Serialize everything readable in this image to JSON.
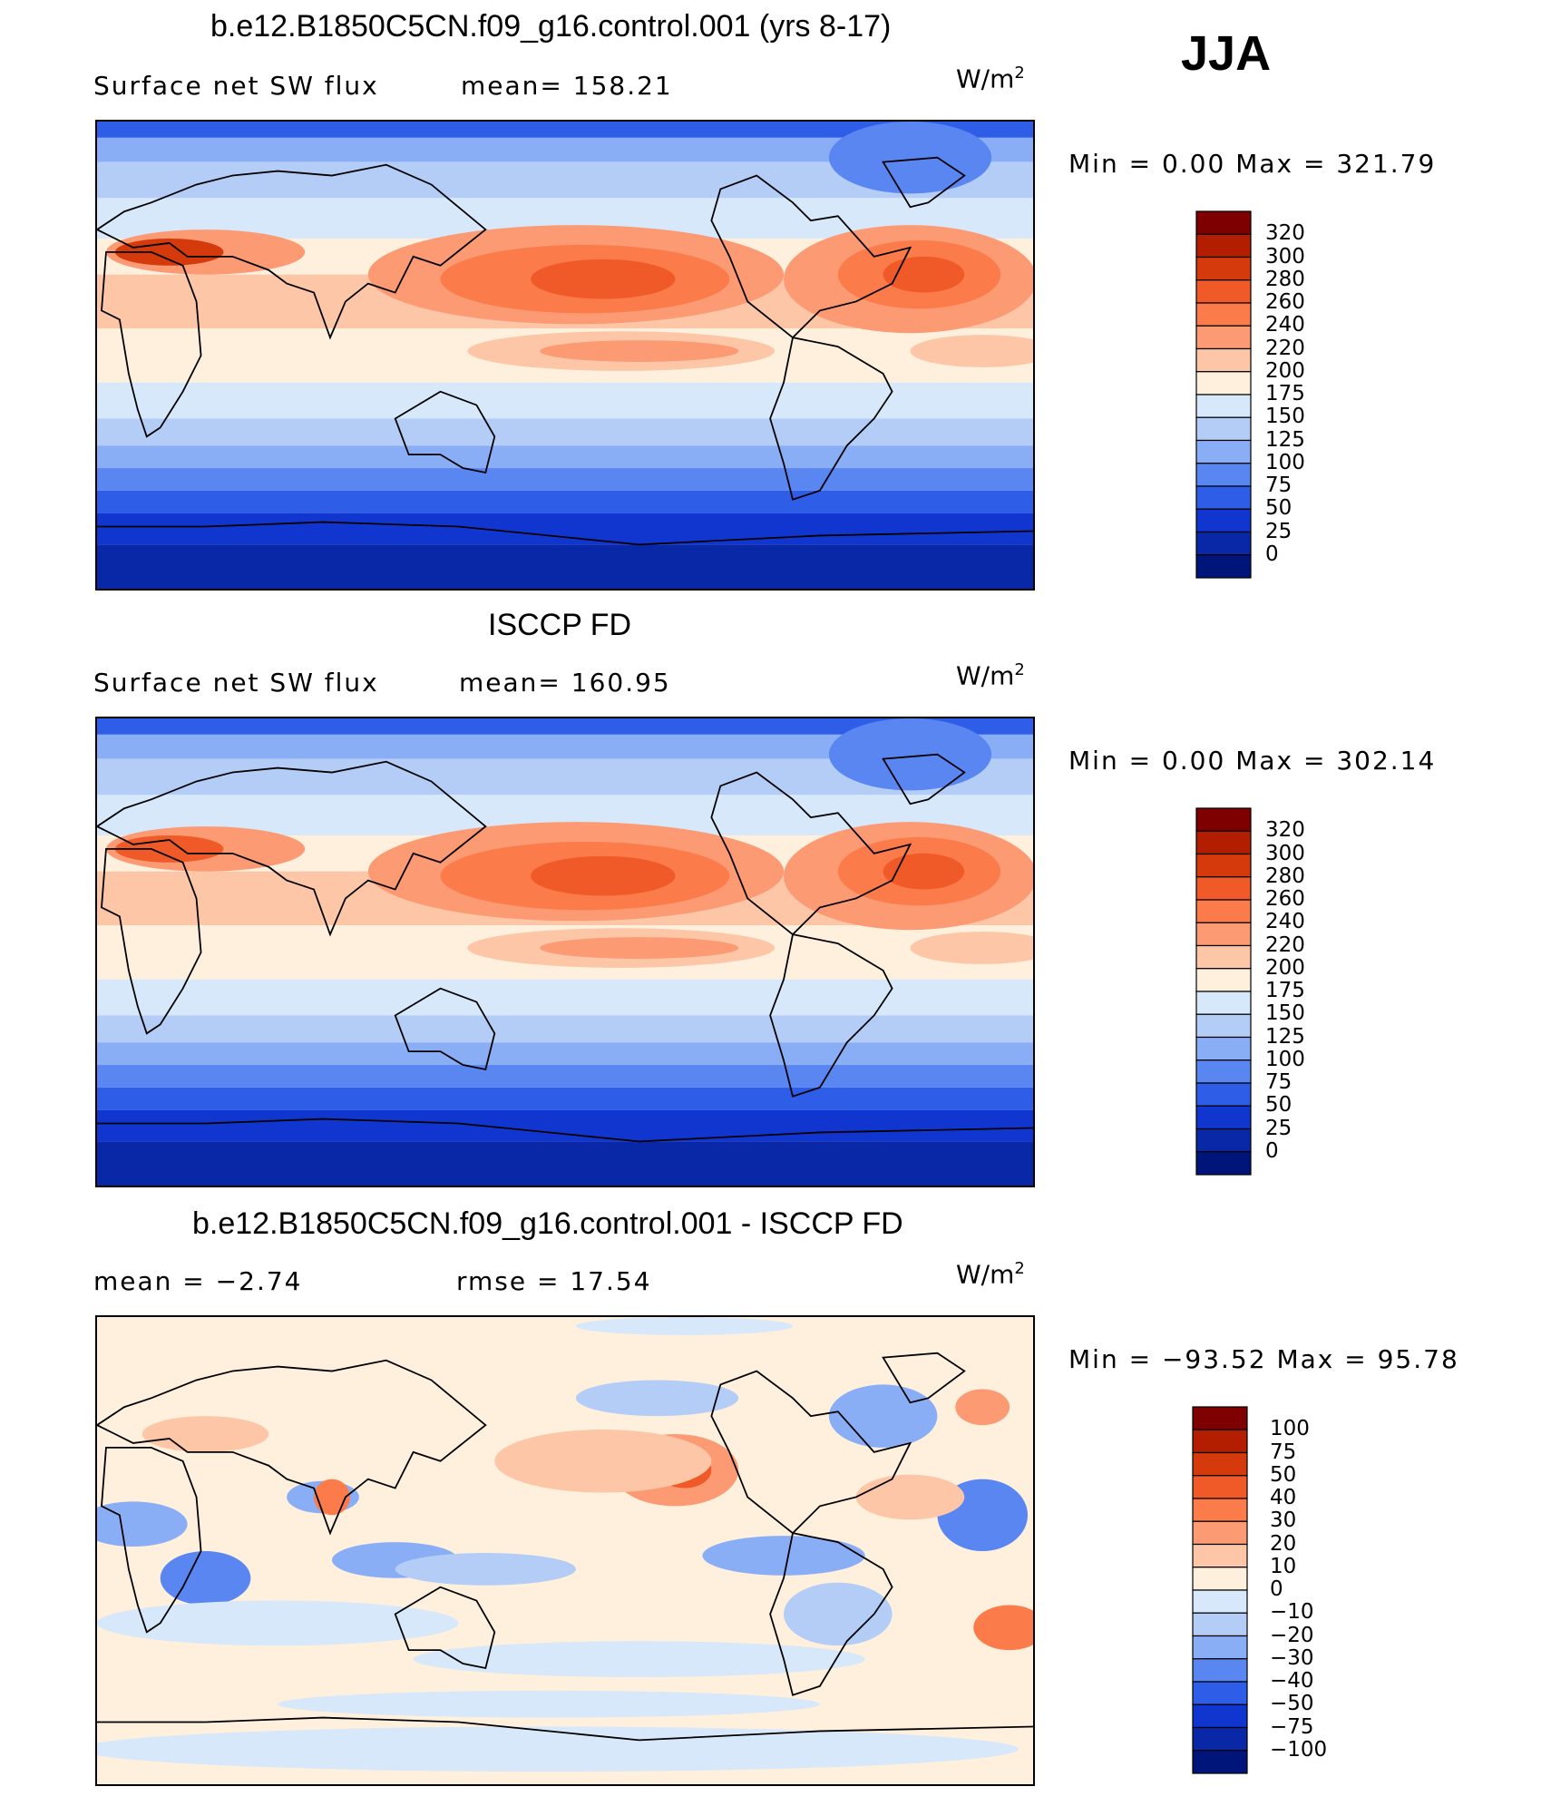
{
  "season": "JJA",
  "panels": [
    {
      "title": "b.e12.B1850C5CN.f09_g16.control.001 (yrs 8-17)",
      "variable": "Surface net SW flux",
      "left_stat": "Surface net SW flux",
      "right_stat": "mean=  158.21",
      "units": "W/m",
      "units_sup": "2",
      "minmax": "Min =     0.00  Max  =  321.79",
      "colorbar": {
        "levels": [
          "320",
          "300",
          "280",
          "260",
          "240",
          "220",
          "200",
          "175",
          "150",
          "125",
          "100",
          "75",
          "50",
          "25",
          "0"
        ],
        "colors": [
          "#7f0000",
          "#b31d00",
          "#d43a0b",
          "#f05a28",
          "#fb7b4a",
          "#fc9a73",
          "#fdc6a7",
          "#fef0dd",
          "#d6e8fa",
          "#b3cdf7",
          "#8aaef5",
          "#5a86f2",
          "#2e5de8",
          "#1136d0",
          "#0828a8",
          "#00157a"
        ]
      }
    },
    {
      "title": "ISCCP FD",
      "left_stat": "Surface net SW flux",
      "right_stat": "mean=  160.95",
      "units": "W/m",
      "units_sup": "2",
      "minmax": "Min =     0.00  Max  =  302.14",
      "colorbar": {
        "levels": [
          "320",
          "300",
          "280",
          "260",
          "240",
          "220",
          "200",
          "175",
          "150",
          "125",
          "100",
          "75",
          "50",
          "25",
          "0"
        ],
        "colors": [
          "#7f0000",
          "#b31d00",
          "#d43a0b",
          "#f05a28",
          "#fb7b4a",
          "#fc9a73",
          "#fdc6a7",
          "#fef0dd",
          "#d6e8fa",
          "#b3cdf7",
          "#8aaef5",
          "#5a86f2",
          "#2e5de8",
          "#1136d0",
          "#0828a8",
          "#00157a"
        ]
      }
    },
    {
      "title": "b.e12.B1850C5CN.f09_g16.control.001 - ISCCP FD",
      "left_stat": "mean =    −2.74",
      "right_stat": "rmse =    17.54",
      "units": "W/m",
      "units_sup": "2",
      "minmax": "Min = −93.52  Max  =   95.78",
      "colorbar": {
        "levels": [
          "100",
          "75",
          "50",
          "40",
          "30",
          "20",
          "10",
          "0",
          "−10",
          "−20",
          "−30",
          "−40",
          "−50",
          "−75",
          "−100"
        ],
        "colors": [
          "#7f0000",
          "#b31d00",
          "#d43a0b",
          "#f05a28",
          "#fb7b4a",
          "#fc9a73",
          "#fdc6a7",
          "#fef0dd",
          "#d6e8fa",
          "#b3cdf7",
          "#8aaef5",
          "#5a86f2",
          "#2e5de8",
          "#1136d0",
          "#0828a8",
          "#00157a"
        ]
      }
    }
  ]
}
